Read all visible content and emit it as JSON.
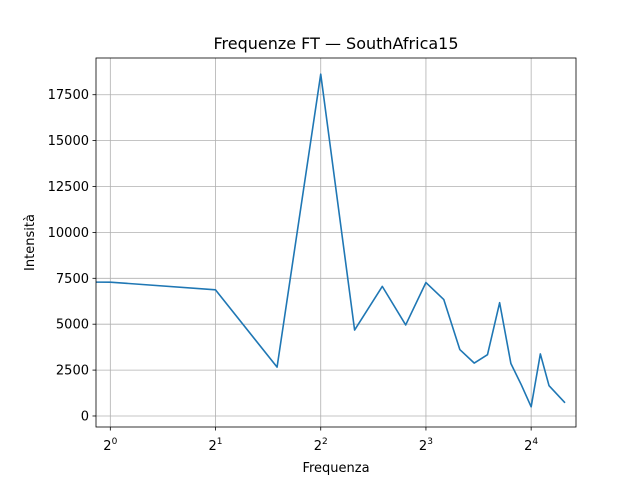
{
  "chart_data": {
    "type": "line",
    "title": "Frequenze FT — SouthAfrica15",
    "xlabel": "Frequenza",
    "ylabel": "Intensità",
    "x_scale": "log2",
    "xlim": [
      0.91,
      21.5
    ],
    "ylim": [
      -600,
      19500
    ],
    "grid": true,
    "x_ticks": [
      {
        "value": 1,
        "base": "2",
        "exp": "0"
      },
      {
        "value": 2,
        "base": "2",
        "exp": "1"
      },
      {
        "value": 4,
        "base": "2",
        "exp": "2"
      },
      {
        "value": 8,
        "base": "2",
        "exp": "3"
      },
      {
        "value": 16,
        "base": "2",
        "exp": "4"
      }
    ],
    "y_ticks": [
      {
        "value": 0,
        "label": "0"
      },
      {
        "value": 2500,
        "label": "2500"
      },
      {
        "value": 5000,
        "label": "5000"
      },
      {
        "value": 7500,
        "label": "7500"
      },
      {
        "value": 10000,
        "label": "10000"
      },
      {
        "value": 12500,
        "label": "12500"
      },
      {
        "value": 15000,
        "label": "15000"
      },
      {
        "value": 17500,
        "label": "17500"
      }
    ],
    "series": [
      {
        "color": "#1f77b4",
        "x": [
          0.5,
          1,
          2,
          3,
          4,
          5,
          6,
          7,
          8,
          9,
          10,
          11,
          12,
          13,
          14,
          15,
          16,
          17,
          18,
          20
        ],
        "y": [
          7300,
          7290,
          6870,
          2660,
          18620,
          4680,
          7060,
          4960,
          7270,
          6340,
          3620,
          2880,
          3340,
          6170,
          2860,
          1690,
          500,
          3380,
          1650,
          720
        ]
      }
    ]
  }
}
